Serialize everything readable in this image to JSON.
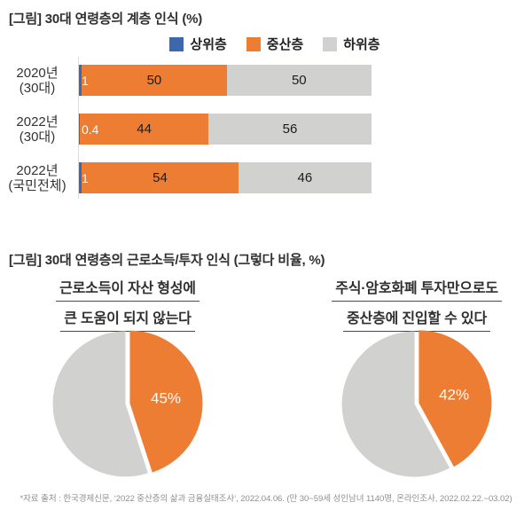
{
  "page": {
    "section1_title": "[그림] 30대 연령층의 계층 인식 (%)",
    "section2_title": "[그림] 30대 연령층의 근로소득/투자 인식 (그렇다 비율, %)",
    "footnote": "*자료 출처 : 한국경제신문, ‘2022 중산층의 삶과 금융실태조사’, 2022.04.06. (만 30~59세 성인남녀 1140명, 온라인조사, 2022.02.22.~03.02)"
  },
  "colors": {
    "upper_blue": "#3d68ac",
    "middle_orange": "#ee7d34",
    "lower_gray": "#d1d1cf",
    "axis_line": "#dcdcdc",
    "inside_label_white": "#ffffff"
  },
  "chart_data": [
    {
      "type": "bar",
      "subtype": "horizontal-stacked",
      "title": "[그림] 30대 연령층의 계층 인식 (%)",
      "unit": "%",
      "categories": [
        [
          "2020년",
          "(30대)"
        ],
        [
          "2022년",
          "(30대)"
        ],
        [
          "2022년",
          "(국민전체)"
        ]
      ],
      "series": [
        {
          "name": "상위층",
          "color": "#3d68ac",
          "values": [
            1,
            0.4,
            1
          ],
          "labels": [
            "1",
            "0.4",
            "1"
          ]
        },
        {
          "name": "중산층",
          "color": "#ee7d34",
          "values": [
            50,
            44,
            54
          ],
          "labels": [
            "50",
            "44",
            "54"
          ]
        },
        {
          "name": "하위층",
          "color": "#d1d1cf",
          "values": [
            50,
            56,
            46
          ],
          "labels": [
            "50",
            "56",
            "46"
          ]
        }
      ],
      "xlim": [
        0,
        101
      ],
      "legend_position": "top",
      "grid": false
    },
    {
      "type": "pie",
      "title_lines": [
        "근로소득이 자산 형성에",
        "큰 도움이 되지 않는다"
      ],
      "slices": [
        {
          "name": "그렇다",
          "value": 45,
          "label": "45%",
          "color": "#ee7d34"
        },
        {
          "name": "나머지",
          "value": 55,
          "label": "",
          "color": "#d1d1cf"
        }
      ],
      "start_angle": "top",
      "direction": "clockwise"
    },
    {
      "type": "pie",
      "title_lines": [
        "주식·암호화폐 투자만으로도",
        "중산층에 진입할 수 있다"
      ],
      "slices": [
        {
          "name": "그렇다",
          "value": 42,
          "label": "42%",
          "color": "#ee7d34"
        },
        {
          "name": "나머지",
          "value": 58,
          "label": "",
          "color": "#d1d1cf"
        }
      ],
      "start_angle": "top",
      "direction": "clockwise"
    }
  ]
}
